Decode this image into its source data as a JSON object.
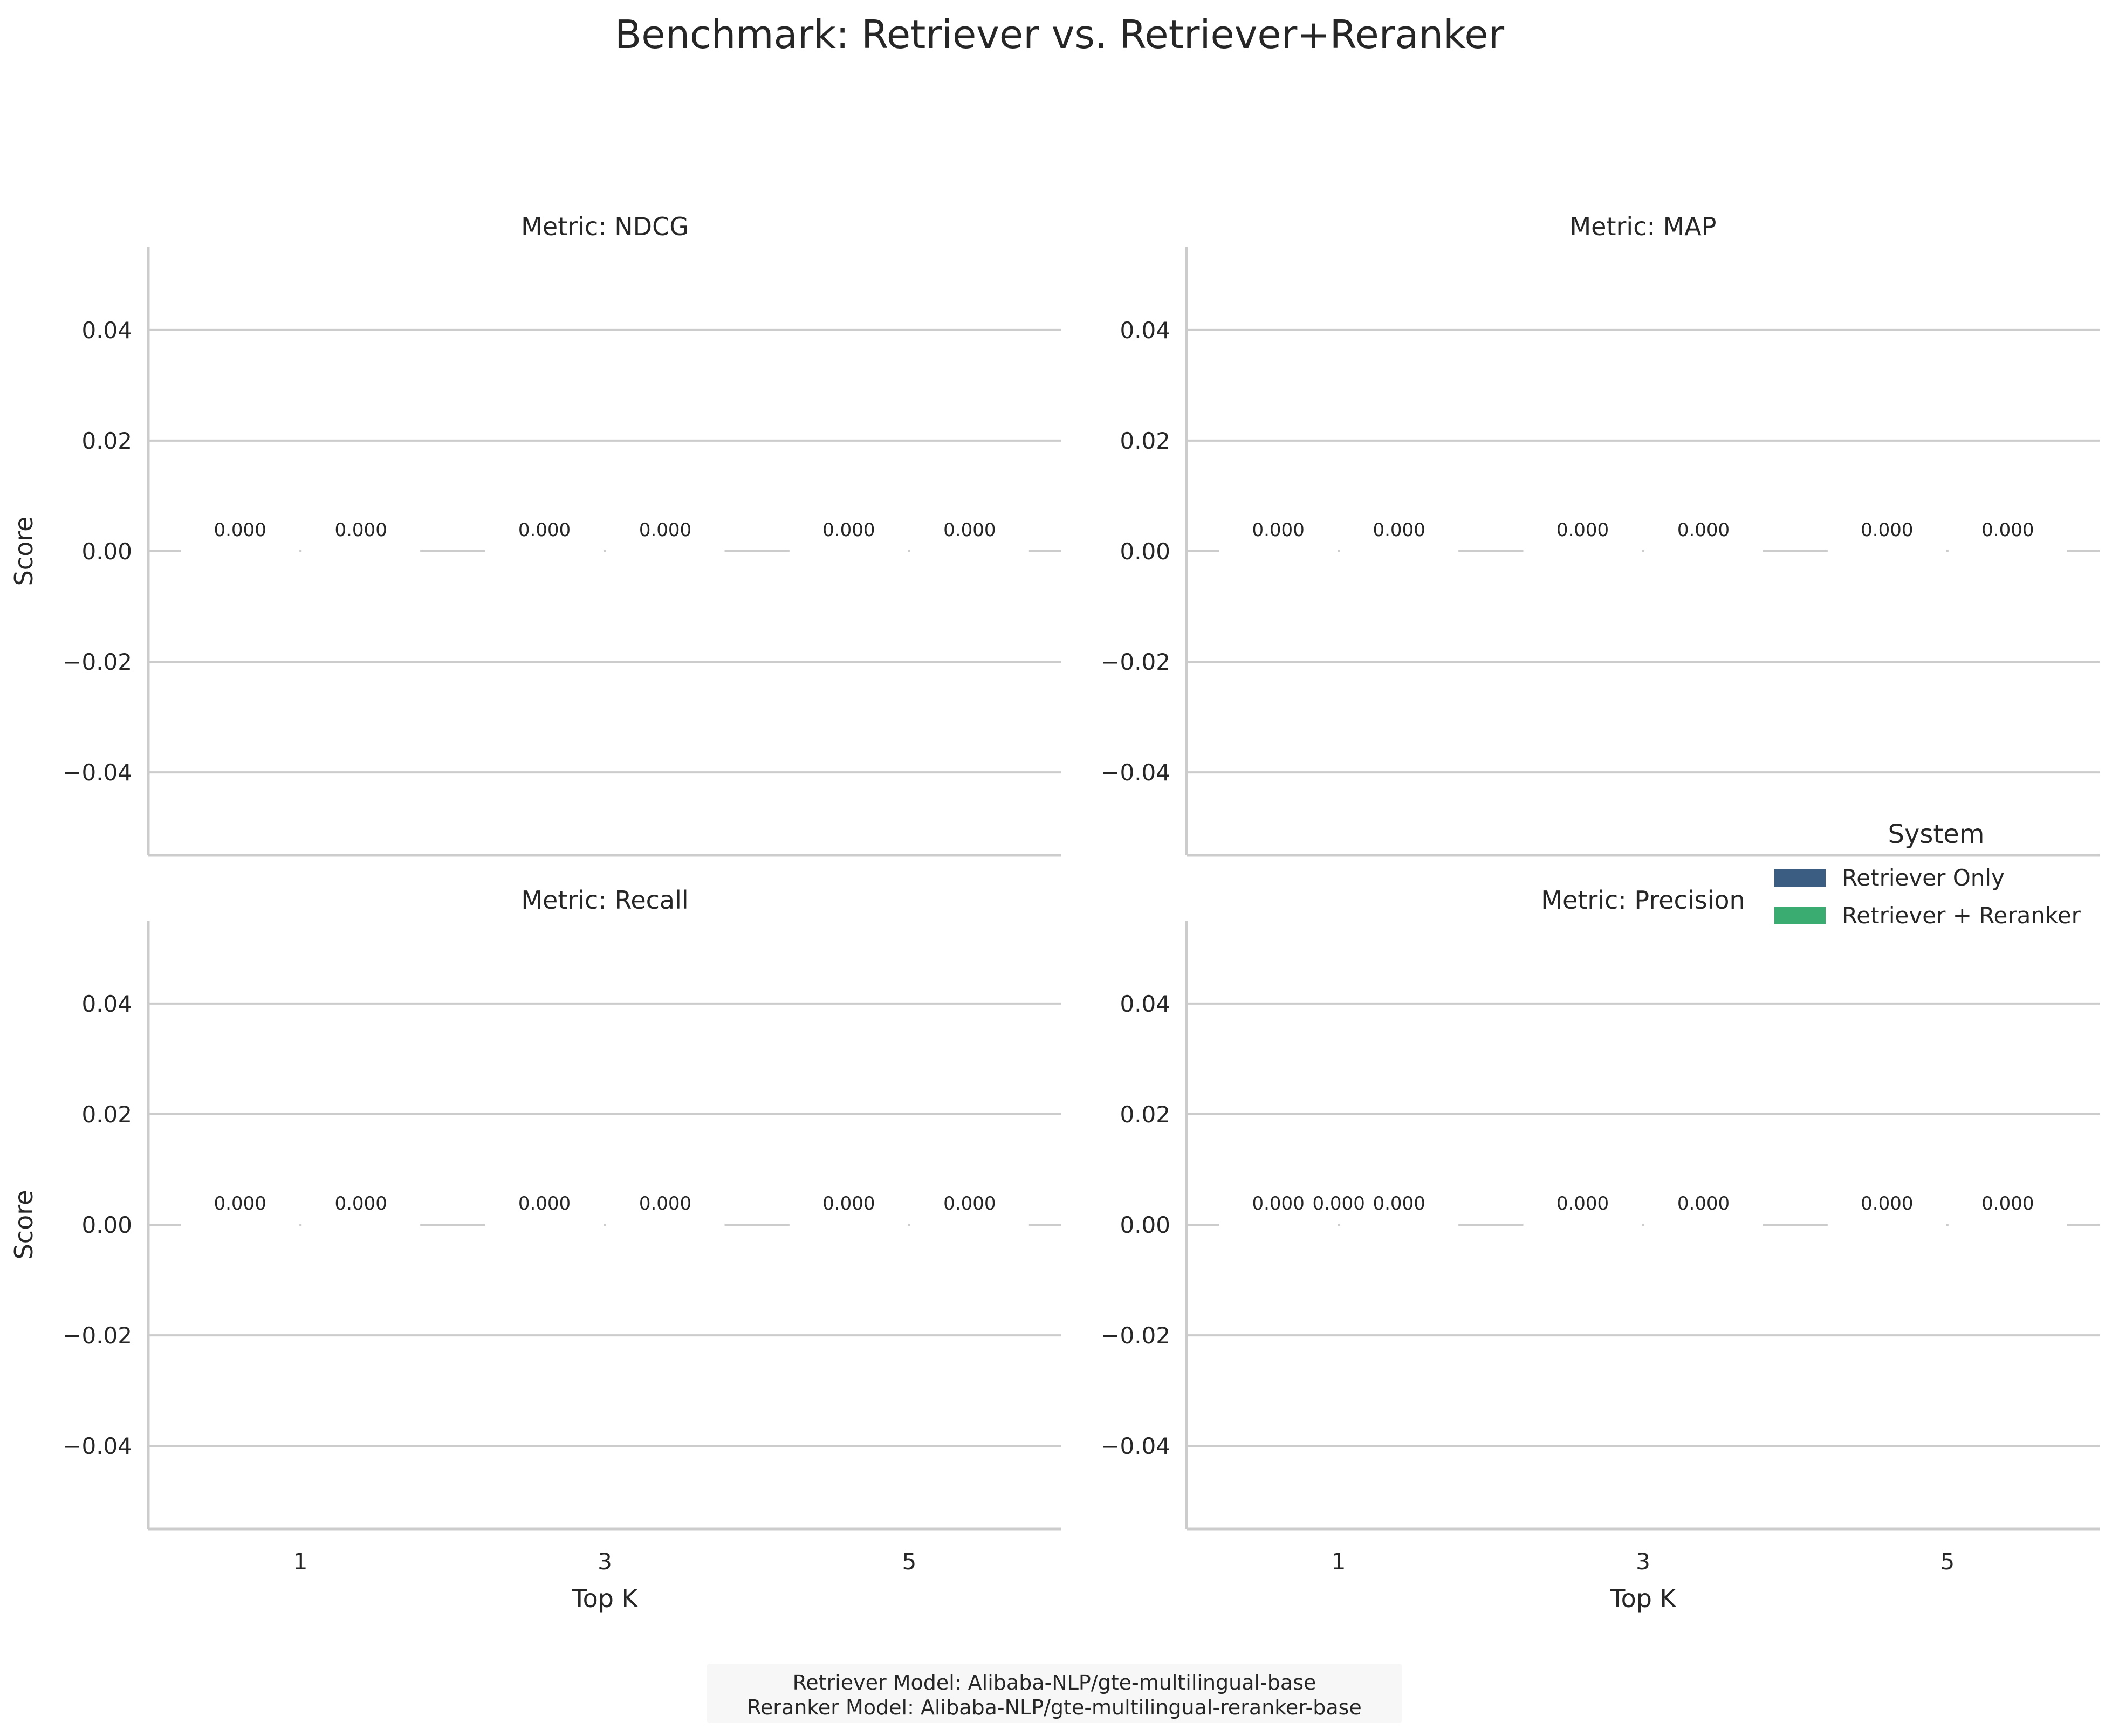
{
  "suptitle": "Benchmark: Retriever vs. Retriever+Reranker",
  "legend": {
    "title": "System",
    "entries": [
      {
        "label": "Retriever Only",
        "color": "#3b5d81"
      },
      {
        "label": "Retriever + Reranker",
        "color": "#3aab71"
      }
    ]
  },
  "footnote": {
    "line1": "Retriever Model: Alibaba-NLP/gte-multilingual-base",
    "line2": "Reranker Model: Alibaba-NLP/gte-multilingual-reranker-base"
  },
  "colors": {
    "grid": "#cccccc",
    "axis": "#cccccc",
    "text": "#262626",
    "retriever_only": "#3b5d81",
    "retriever_reranker": "#3aab71"
  },
  "chart_data": [
    {
      "type": "bar",
      "title": "Metric: NDCG",
      "xlabel": "",
      "ylabel": "Score",
      "categories": [
        "1",
        "3",
        "5"
      ],
      "ylim": [
        -0.055,
        0.055
      ],
      "yticks": [
        0.04,
        0.02,
        0.0,
        -0.02,
        -0.04
      ],
      "ytick_labels": [
        "0.04",
        "0.02",
        "0.00",
        "−0.02",
        "−0.04"
      ],
      "grid": true,
      "series": [
        {
          "name": "Retriever Only",
          "values": [
            0,
            0,
            0
          ]
        },
        {
          "name": "Retriever + Reranker",
          "values": [
            0,
            0,
            0
          ]
        }
      ],
      "data_labels": [
        {
          "x": "1",
          "value_text": "0.000",
          "slot": 0
        },
        {
          "x": "1",
          "value_text": "0.000",
          "slot": 1
        },
        {
          "x": "3",
          "value_text": "0.000",
          "slot": 0
        },
        {
          "x": "3",
          "value_text": "0.000",
          "slot": 1
        },
        {
          "x": "5",
          "value_text": "0.000",
          "slot": 0
        },
        {
          "x": "5",
          "value_text": "0.000",
          "slot": 1
        }
      ],
      "show_xticks": false
    },
    {
      "type": "bar",
      "title": "Metric: MAP",
      "xlabel": "",
      "ylabel": "",
      "categories": [
        "1",
        "3",
        "5"
      ],
      "ylim": [
        -0.055,
        0.055
      ],
      "yticks": [
        0.04,
        0.02,
        0.0,
        -0.02,
        -0.04
      ],
      "ytick_labels": [
        "0.04",
        "0.02",
        "0.00",
        "−0.02",
        "−0.04"
      ],
      "grid": true,
      "series": [
        {
          "name": "Retriever Only",
          "values": [
            0,
            0,
            0
          ]
        },
        {
          "name": "Retriever + Reranker",
          "values": [
            0,
            0,
            0
          ]
        }
      ],
      "data_labels": [
        {
          "x": "1",
          "value_text": "0.000",
          "slot": 0
        },
        {
          "x": "1",
          "value_text": "0.000",
          "slot": 1
        },
        {
          "x": "3",
          "value_text": "0.000",
          "slot": 0
        },
        {
          "x": "3",
          "value_text": "0.000",
          "slot": 1
        },
        {
          "x": "5",
          "value_text": "0.000",
          "slot": 0
        },
        {
          "x": "5",
          "value_text": "0.000",
          "slot": 1
        }
      ],
      "show_xticks": false
    },
    {
      "type": "bar",
      "title": "Metric: Recall",
      "xlabel": "Top K",
      "ylabel": "Score",
      "categories": [
        "1",
        "3",
        "5"
      ],
      "ylim": [
        -0.055,
        0.055
      ],
      "yticks": [
        0.04,
        0.02,
        0.0,
        -0.02,
        -0.04
      ],
      "ytick_labels": [
        "0.04",
        "0.02",
        "0.00",
        "−0.02",
        "−0.04"
      ],
      "grid": true,
      "series": [
        {
          "name": "Retriever Only",
          "values": [
            0,
            0,
            0
          ]
        },
        {
          "name": "Retriever + Reranker",
          "values": [
            0,
            0,
            0
          ]
        }
      ],
      "data_labels": [
        {
          "x": "1",
          "value_text": "0.000",
          "slot": 0
        },
        {
          "x": "1",
          "value_text": "0.000",
          "slot": 1
        },
        {
          "x": "3",
          "value_text": "0.000",
          "slot": 0
        },
        {
          "x": "3",
          "value_text": "0.000",
          "slot": 1
        },
        {
          "x": "5",
          "value_text": "0.000",
          "slot": 0
        },
        {
          "x": "5",
          "value_text": "0.000",
          "slot": 1
        }
      ],
      "show_xticks": true
    },
    {
      "type": "bar",
      "title": "Metric: Precision",
      "xlabel": "Top K",
      "ylabel": "",
      "categories": [
        "1",
        "3",
        "5"
      ],
      "ylim": [
        -0.055,
        0.055
      ],
      "yticks": [
        0.04,
        0.02,
        0.0,
        -0.02,
        -0.04
      ],
      "ytick_labels": [
        "0.04",
        "0.02",
        "0.00",
        "−0.02",
        "−0.04"
      ],
      "grid": true,
      "series": [
        {
          "name": "Retriever Only",
          "values": [
            0,
            0,
            0
          ]
        },
        {
          "name": "Retriever + Reranker",
          "values": [
            0,
            0,
            0
          ]
        }
      ],
      "data_labels": [
        {
          "x": "1",
          "value_text": "0.000",
          "slot": 0
        },
        {
          "x": "1",
          "value_text": "0.000",
          "slot": 0.5
        },
        {
          "x": "1",
          "value_text": "0.000",
          "slot": 1
        },
        {
          "x": "3",
          "value_text": "0.000",
          "slot": 0
        },
        {
          "x": "3",
          "value_text": "0.000",
          "slot": 1
        },
        {
          "x": "5",
          "value_text": "0.000",
          "slot": 0
        },
        {
          "x": "5",
          "value_text": "0.000",
          "slot": 1
        }
      ],
      "show_xticks": true
    }
  ]
}
